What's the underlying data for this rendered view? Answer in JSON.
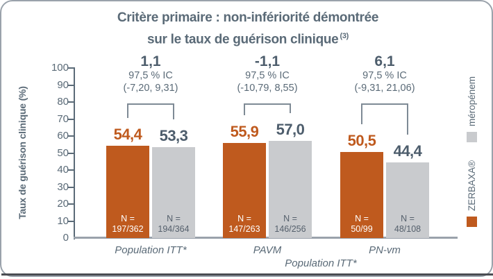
{
  "title": {
    "line1": "Critère primaire : non-infériorité démontrée",
    "line2": "sur le taux de guérison clinique",
    "sup": "(3)"
  },
  "colors": {
    "zerbaxa_orange": "#bf5a1e",
    "meropenem_gray": "#c9cbce",
    "slate_text": "#5a6a77",
    "dark_value_text": "#4d5d6c",
    "border_gray": "#9aa2ab"
  },
  "legend": {
    "items": [
      {
        "label": "ZERBAXA®",
        "color": "#bf5a1e"
      },
      {
        "label": "méropénem",
        "color": "#c9cbce"
      }
    ]
  },
  "chart_data": {
    "type": "bar",
    "title": "Critère primaire : non-infériorité démontrée sur le taux de guérison clinique (3)",
    "ylabel": "Taux de guérison clinique (%)",
    "xlabel": "Population ITT*",
    "ylim": [
      0,
      100
    ],
    "yticks": [
      0,
      10,
      20,
      30,
      40,
      50,
      60,
      70,
      80,
      90,
      100
    ],
    "grid": false,
    "legend_position": "right-rotated",
    "categories": [
      "Population ITT*",
      "PAVM",
      "PN-vm"
    ],
    "n_prefix": "N =",
    "series": [
      {
        "name": "ZERBAXA®",
        "color": "#bf5a1e",
        "values": [
          54.4,
          55.9,
          50.5
        ],
        "value_labels": [
          "54,4",
          "55,9",
          "50,5"
        ],
        "n_labels": [
          "197/362",
          "147/263",
          "50/99"
        ],
        "value_label_color": "#bf5a1e",
        "n_text_color": "#ffffff"
      },
      {
        "name": "méropénem",
        "color": "#c9cbce",
        "values": [
          53.3,
          57.0,
          44.4
        ],
        "value_labels": [
          "53,3",
          "57,0",
          "44,4"
        ],
        "n_labels": [
          "194/364",
          "146/256",
          "48/108"
        ],
        "value_label_color": "#4d5d6c",
        "n_text_color": "#55606c"
      }
    ],
    "annotations": [
      {
        "diff": "1,1",
        "ci_label": "97,5 % IC",
        "ci": "(-7,20, 9,31)"
      },
      {
        "diff": "-1,1",
        "ci_label": "97,5 % IC",
        "ci": "(-10,79, 8,55)"
      },
      {
        "diff": "6,1",
        "ci_label": "97,5 % IC",
        "ci": "(-9,31, 21,06)"
      }
    ]
  }
}
